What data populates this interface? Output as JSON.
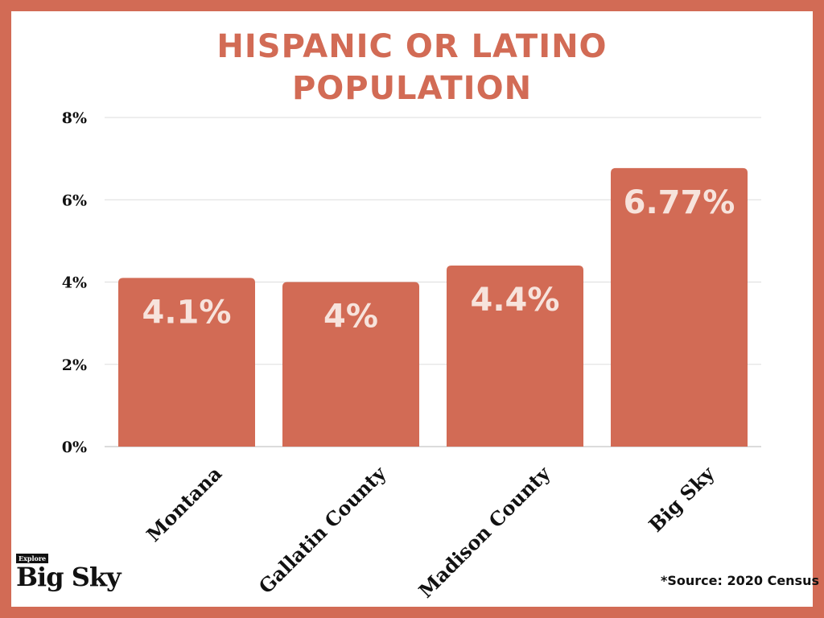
{
  "chart_data": {
    "type": "bar",
    "title": [
      "HISPANIC OR LATINO",
      "POPULATION"
    ],
    "categories": [
      "Montana",
      "Gallatin County",
      "Madison County",
      "Big Sky"
    ],
    "values": [
      4.1,
      4,
      4.4,
      6.77
    ],
    "data_labels": [
      "4.1%",
      "4%",
      "4.4%",
      "6.77%"
    ],
    "y_ticks": [
      "0%",
      "2%",
      "4%",
      "6%",
      "8%"
    ],
    "ylim": [
      0,
      8
    ],
    "grid": true,
    "legend": "none",
    "xlabel": "",
    "ylabel": ""
  },
  "colors": {
    "frame": "#d26b55",
    "bar": "#d26b55",
    "bar_label": "#f7e3dc",
    "grid": "#dddddd",
    "axis_text": "#111111"
  },
  "logo": {
    "small": "Explore",
    "big": "Big Sky"
  },
  "source": "*Source: 2020 Census"
}
